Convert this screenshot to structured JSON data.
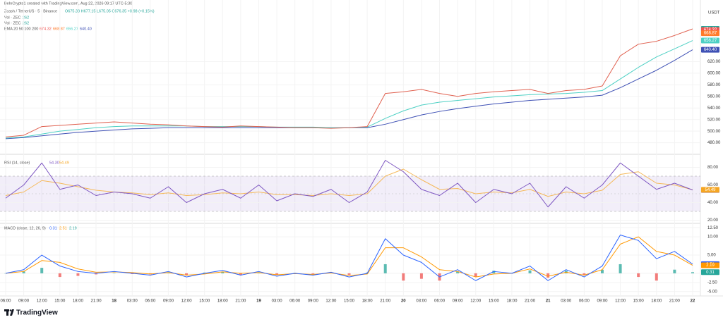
{
  "header": {
    "credit": "BeInCrypto1 created with TradingView.com, Aug 22, 2026 09:17 UTC-5:30",
    "symbol": "Zcash / TetherUS · 5 · Binance",
    "ohlc": "O675.33 H677.15 L675.05 C676.35 +0.98 (+0.15%)",
    "vol_a": "Vol · ZEC",
    "vol_a_value": "262",
    "vol_b": "Vol · ZEC",
    "vol_b_value": "262",
    "ema": "EMA 20 50 100 200",
    "ema_values": [
      "674.32",
      "668.87",
      "656.27",
      "640.40"
    ]
  },
  "currency": "USDT",
  "footer": {
    "brand": "TradingView"
  },
  "chart_data": [
    {
      "type": "line",
      "ylim": [
        465,
        714
      ],
      "yticks": [
        {
          "value": 480,
          "label": "480.00"
        },
        {
          "value": 500,
          "label": "500.00"
        },
        {
          "value": 520,
          "label": "520.00"
        },
        {
          "value": 540,
          "label": "540.00"
        },
        {
          "value": 560,
          "label": "560.00"
        },
        {
          "value": 580,
          "label": "580.00"
        },
        {
          "value": 600,
          "label": "600.00"
        },
        {
          "value": 620,
          "label": "620.00"
        }
      ],
      "series": [
        {
          "name": "EMA 200",
          "color": "#3f51b5",
          "values": [
            487,
            489,
            492,
            495,
            498,
            500,
            502,
            504,
            505,
            506,
            506,
            506,
            506,
            506,
            506,
            506,
            506,
            506,
            506,
            506,
            506,
            512,
            520,
            528,
            534,
            539,
            543,
            547,
            550,
            553,
            555,
            557,
            559,
            562,
            575,
            590,
            605,
            622,
            640.4
          ]
        },
        {
          "name": "EMA 100",
          "color": "#4dd0c4",
          "values": [
            488,
            490,
            495,
            500,
            503,
            506,
            508,
            509,
            509,
            509,
            509,
            508,
            508,
            508,
            508,
            507,
            507,
            507,
            506,
            506,
            507,
            522,
            535,
            545,
            550,
            553,
            556,
            559,
            561,
            563,
            564,
            565,
            567,
            570,
            590,
            610,
            628,
            642,
            656.27
          ]
        },
        {
          "name": "Zcash / TetherUS",
          "color": "#e0604f",
          "values": [
            490,
            493,
            508,
            510,
            512,
            514,
            516,
            514,
            512,
            511,
            509,
            508,
            507,
            509,
            508,
            507,
            506,
            506,
            505,
            506,
            508,
            565,
            568,
            572,
            565,
            560,
            565,
            568,
            570,
            572,
            565,
            570,
            572,
            578,
            630,
            650,
            655,
            665,
            676.35
          ]
        }
      ],
      "tags": [
        {
          "value": 676.35,
          "label": "676.35",
          "color": "#26a69a"
        },
        {
          "value": 674.32,
          "label": "674.32",
          "color": "#ef5350"
        },
        {
          "value": 668.87,
          "label": "668.87",
          "color": "#ff7a29"
        },
        {
          "value": 656.27,
          "label": "656.27",
          "color": "#4dd0c4"
        },
        {
          "value": 640.4,
          "label": "640.40",
          "color": "#3f51b5"
        }
      ]
    },
    {
      "type": "line",
      "title": "RSI (14, close)",
      "title_values": [
        "54.30",
        "54.49"
      ],
      "ylim": [
        18,
        90
      ],
      "yticks": [
        {
          "value": 80,
          "label": "80.00"
        },
        {
          "value": 60,
          "label": "60.00"
        },
        {
          "value": 40,
          "label": "40.00"
        },
        {
          "value": 20,
          "label": "20.00"
        }
      ],
      "band": [
        30,
        70
      ],
      "midline": 50,
      "series": [
        {
          "name": "RSI MA",
          "color": "#f5b95a",
          "values": [
            48,
            52,
            65,
            62,
            58,
            54,
            52,
            51,
            49,
            51,
            48,
            49,
            51,
            50,
            52,
            49,
            49,
            48,
            50,
            48,
            50,
            70,
            78,
            66,
            55,
            56,
            50,
            52,
            51,
            55,
            47,
            52,
            50,
            54,
            72,
            75,
            62,
            60,
            54.49
          ]
        },
        {
          "name": "RSI",
          "color": "#7e57c2",
          "values": [
            45,
            60,
            85,
            55,
            60,
            48,
            52,
            50,
            45,
            58,
            40,
            50,
            55,
            45,
            60,
            42,
            50,
            47,
            55,
            40,
            52,
            88,
            75,
            55,
            48,
            62,
            40,
            55,
            50,
            62,
            35,
            58,
            45,
            60,
            85,
            70,
            55,
            62,
            54.3
          ]
        }
      ],
      "tags": [
        {
          "value": 54.3,
          "label": "54.30",
          "color": "#7e57c2"
        },
        {
          "value": 54.49,
          "label": "54.49",
          "color": "#f5a623"
        }
      ]
    },
    {
      "type": "line",
      "title": "MACD (close, 12, 26, 9)",
      "title_values": [
        "0.31",
        "2.51",
        "2.19"
      ],
      "ylim": [
        -6.2,
        13.5
      ],
      "yticks": [
        {
          "value": 12.5,
          "label": "12.50"
        },
        {
          "value": 10,
          "label": "10.00"
        },
        {
          "value": 5,
          "label": "5.00"
        },
        {
          "value": 0,
          "label": "0.00"
        },
        {
          "value": -2.5,
          "label": "-2.50"
        },
        {
          "value": -5,
          "label": "-5.00"
        }
      ],
      "categories": [
        "06:00",
        "09:00",
        "12:00",
        "15:00",
        "18:00",
        "21:00",
        "18",
        "03:00",
        "06:00",
        "09:00",
        "12:00",
        "15:00",
        "18:00",
        "21:00",
        "19",
        "03:00",
        "06:00",
        "09:00",
        "12:00",
        "15:00",
        "18:00",
        "21:00",
        "20",
        "03:00",
        "06:00",
        "09:00",
        "12:00",
        "15:00",
        "18:00",
        "21:00",
        "21",
        "03:00",
        "06:00",
        "09:00",
        "12:00",
        "15:00",
        "18:00",
        "21:00",
        "22"
      ],
      "series": [
        {
          "name": "Histogram",
          "style": "bar",
          "color": "#26a69a",
          "negative_color": "#ef5350",
          "values": [
            0,
            0.5,
            1.5,
            -1,
            -0.7,
            -0.3,
            0.1,
            -0.2,
            -0.3,
            0.3,
            -0.5,
            0.2,
            0.4,
            -0.5,
            0.3,
            -0.4,
            0.1,
            -0.2,
            0.2,
            -0.4,
            0.2,
            2.5,
            -2,
            -1.5,
            -2,
            0.5,
            -1,
            0.7,
            0,
            0.8,
            -1.2,
            0.7,
            -0.5,
            1,
            2.5,
            -1,
            -2,
            1,
            0.31
          ]
        },
        {
          "name": "Signal",
          "color": "#ff9800",
          "values": [
            0,
            0.5,
            3.5,
            3,
            1.2,
            0.3,
            0.4,
            0.2,
            -0.2,
            0.2,
            -0.5,
            -0.2,
            0.4,
            0,
            0.2,
            -0.4,
            -0.1,
            -0.3,
            0.1,
            -0.6,
            -0.2,
            7,
            7,
            4.5,
            1,
            0.5,
            -1,
            -0.2,
            0,
            1.2,
            -0.8,
            0.3,
            -0.5,
            1,
            8,
            10,
            6,
            5,
            2.19
          ]
        },
        {
          "name": "MACD",
          "color": "#2962ff",
          "values": [
            0,
            1,
            5,
            2,
            0.5,
            0,
            0.5,
            0,
            -0.5,
            0.5,
            -1,
            0,
            0.8,
            -0.5,
            0.5,
            -0.8,
            0,
            -0.5,
            0.3,
            -1,
            0,
            9.5,
            5,
            3,
            -1,
            1,
            -2,
            0.5,
            0,
            2,
            -2,
            1,
            -1,
            2,
            10.5,
            9,
            4,
            6,
            2.51
          ]
        }
      ],
      "tags": [
        {
          "value": 2.51,
          "label": "2.51",
          "color": "#2962ff"
        },
        {
          "value": 2.19,
          "label": "2.19",
          "color": "#ff9800"
        },
        {
          "value": 0.31,
          "label": "0.31",
          "color": "#26a69a"
        }
      ]
    }
  ]
}
